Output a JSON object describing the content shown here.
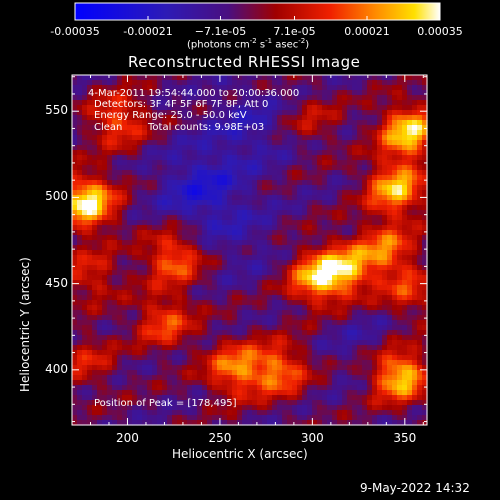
{
  "chart_data": {
    "type": "heatmap",
    "title": "Reconstructed RHESSI Image",
    "xlabel": "Heliocentric X (arcsec)",
    "ylabel": "Heliocentric Y (arcsec)",
    "xlim": [
      170,
      362
    ],
    "ylim": [
      368,
      571
    ],
    "x_ticks": [
      200,
      250,
      300,
      350
    ],
    "y_ticks": [
      400,
      450,
      500,
      550
    ],
    "colorbar": {
      "range": [
        -0.00035,
        0.00035
      ],
      "tick_values": [
        -0.00035,
        -0.00021,
        -7.1e-05,
        7.1e-05,
        0.00021,
        0.00035
      ],
      "tick_labels": [
        "-0.00035",
        "-0.00021",
        "−7.1e-05",
        "7.1e-05",
        "0.00021",
        "0.00035"
      ],
      "units_main": "(photons cm",
      "units_exp1": "-2",
      "units_mid": " s",
      "units_exp2": "-1",
      "units_end": " asec",
      "units_exp3": "-2",
      "units_close": ")",
      "colormap": "blue-purple-red-yellow-white"
    },
    "annotations": {
      "time_range": "4-Mar-2011 19:54:44.000 to 20:00:36.000",
      "detectors": "Detectors: 3F 4F 5F 6F 7F 8F, Att 0",
      "energy_range": "Energy Range: 25.0 - 50.0 keV",
      "method": "Clean",
      "total_counts": "Total counts: 9.98E+03",
      "peak_position": "Position of Peak = [178,495]"
    },
    "features": [
      {
        "x": 178,
        "y": 497,
        "value": 0.00034
      },
      {
        "x": 347,
        "y": 397,
        "value": 0.00031
      },
      {
        "x": 352,
        "y": 538,
        "value": 0.0003
      },
      {
        "x": 345,
        "y": 505,
        "value": 0.00027
      },
      {
        "x": 302,
        "y": 453,
        "value": 0.00024
      },
      {
        "x": 318,
        "y": 458,
        "value": 0.00022
      },
      {
        "x": 225,
        "y": 465,
        "value": 0.0002
      },
      {
        "x": 258,
        "y": 400,
        "value": 0.00021
      },
      {
        "x": 282,
        "y": 400,
        "value": 0.0002
      },
      {
        "x": 195,
        "y": 545,
        "value": 0.00017
      },
      {
        "x": 220,
        "y": 428,
        "value": 0.00016
      },
      {
        "x": 340,
        "y": 470,
        "value": 0.00018
      },
      {
        "x": 352,
        "y": 445,
        "value": 0.00012
      },
      {
        "x": 180,
        "y": 455,
        "value": 0.00011
      },
      {
        "x": 178,
        "y": 405,
        "value": 9e-05
      },
      {
        "x": 300,
        "y": 545,
        "value": 6e-05
      },
      {
        "x": 240,
        "y": 505,
        "value": -0.0002
      },
      {
        "x": 265,
        "y": 540,
        "value": -0.00014
      },
      {
        "x": 330,
        "y": 415,
        "value": -0.0001
      },
      {
        "x": 262,
        "y": 475,
        "value": -0.0001
      }
    ],
    "background_value": -4e-05
  },
  "footer": {
    "date": "9-May-2022 14:32"
  }
}
